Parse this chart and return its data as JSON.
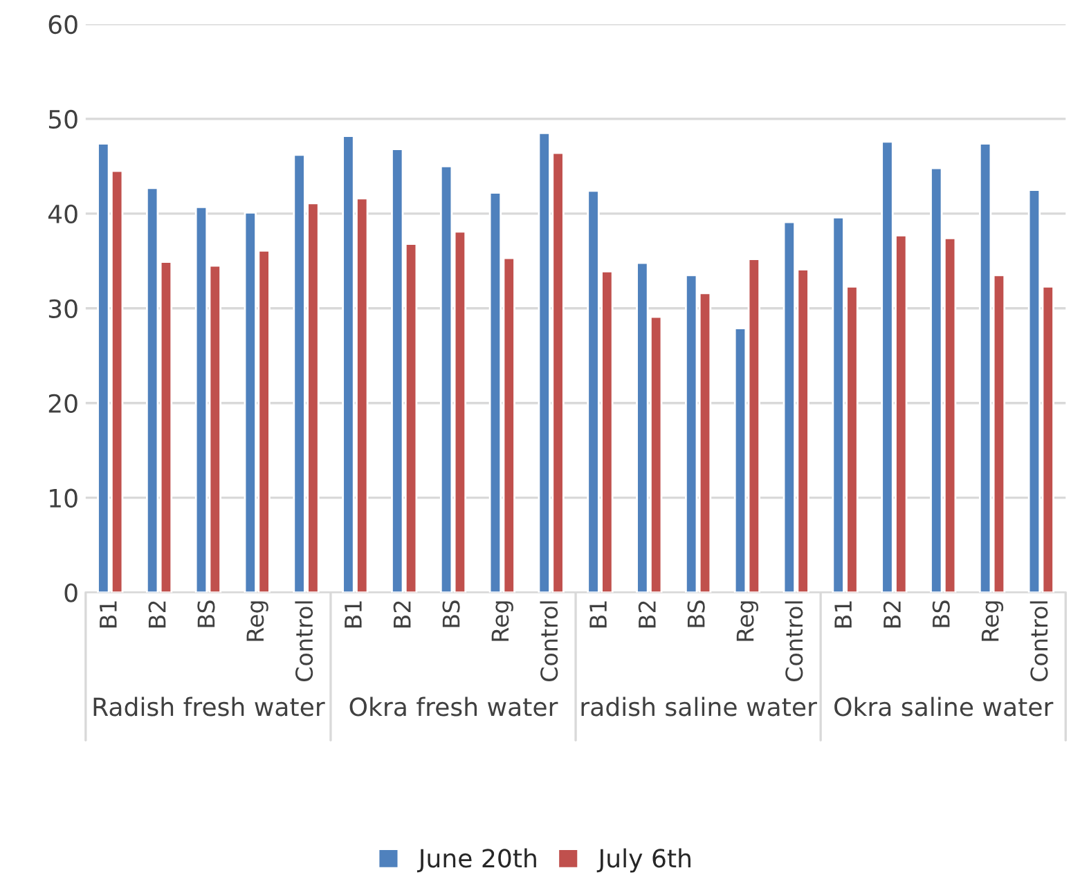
{
  "chart_data": {
    "type": "bar",
    "categories": [
      "B1",
      "B2",
      "BS",
      "Reg",
      "Control",
      "B1",
      "B2",
      "BS",
      "Reg",
      "Control",
      "B1",
      "B2",
      "BS",
      "Reg",
      "Control",
      "B1",
      "B2",
      "BS",
      "Reg",
      "Control"
    ],
    "series": [
      {
        "name": "June 20th",
        "color": "#4f81bd",
        "values": [
          47.4,
          42.7,
          40.7,
          40.1,
          46.2,
          48.2,
          46.8,
          45.0,
          42.2,
          48.5,
          42.4,
          34.8,
          33.5,
          27.9,
          39.1,
          39.6,
          47.6,
          44.8,
          47.4,
          42.5
        ]
      },
      {
        "name": "July 6th",
        "color": "#c0504d",
        "values": [
          44.5,
          34.9,
          34.5,
          36.1,
          41.1,
          41.6,
          36.8,
          38.1,
          35.3,
          46.4,
          33.9,
          29.1,
          31.6,
          35.2,
          34.1,
          32.3,
          37.7,
          37.4,
          33.5,
          32.3
        ]
      }
    ],
    "annotations": [
      "Radish fresh water",
      "Okra fresh water",
      "radish saline water",
      "Okra saline water"
    ],
    "ylim": [
      0,
      60
    ],
    "yticks": [
      0,
      10,
      20,
      30,
      40,
      50,
      60
    ],
    "grid": "y",
    "legend": "bottom"
  }
}
